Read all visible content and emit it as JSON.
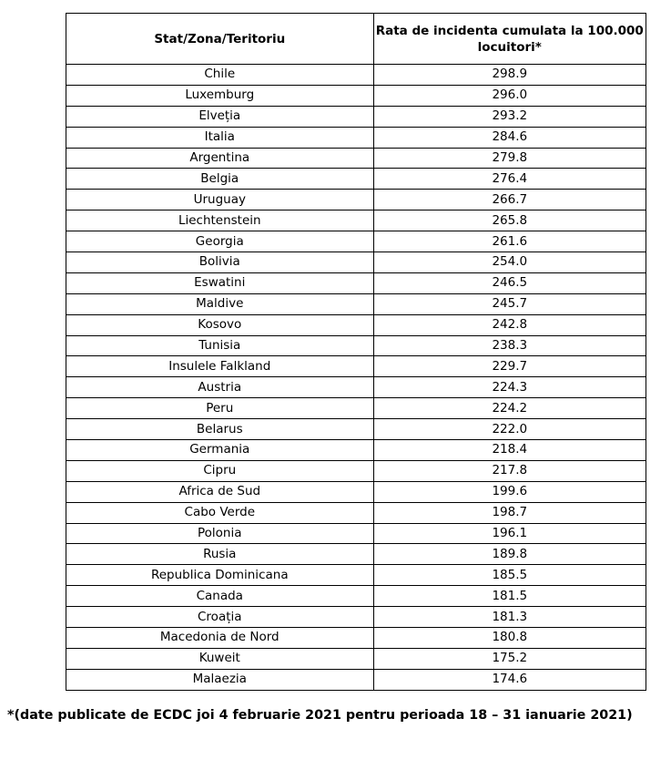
{
  "table": {
    "headers": [
      "Stat/Zona/Teritoriu",
      "Rata de incidenta cumulata la 100.000 locuitori*"
    ],
    "rows": [
      [
        "Chile",
        "298.9"
      ],
      [
        "Luxemburg",
        "296.0"
      ],
      [
        "Elveția",
        "293.2"
      ],
      [
        "Italia",
        "284.6"
      ],
      [
        "Argentina",
        "279.8"
      ],
      [
        "Belgia",
        "276.4"
      ],
      [
        "Uruguay",
        "266.7"
      ],
      [
        "Liechtenstein",
        "265.8"
      ],
      [
        "Georgia",
        "261.6"
      ],
      [
        "Bolivia",
        "254.0"
      ],
      [
        "Eswatini",
        "246.5"
      ],
      [
        "Maldive",
        "245.7"
      ],
      [
        "Kosovo",
        "242.8"
      ],
      [
        "Tunisia",
        "238.3"
      ],
      [
        "Insulele Falkland",
        "229.7"
      ],
      [
        "Austria",
        "224.3"
      ],
      [
        "Peru",
        "224.2"
      ],
      [
        "Belarus",
        "222.0"
      ],
      [
        "Germania",
        "218.4"
      ],
      [
        "Cipru",
        "217.8"
      ],
      [
        "Africa de Sud",
        "199.6"
      ],
      [
        "Cabo Verde",
        "198.7"
      ],
      [
        "Polonia",
        "196.1"
      ],
      [
        "Rusia",
        "189.8"
      ],
      [
        "Republica Dominicana",
        "185.5"
      ],
      [
        "Canada",
        "181.5"
      ],
      [
        "Croația",
        "181.3"
      ],
      [
        "Macedonia de Nord",
        "180.8"
      ],
      [
        "Kuweit",
        "175.2"
      ],
      [
        "Malaezia",
        "174.6"
      ]
    ]
  },
  "footnote": "*(date publicate de ECDC joi 4 februarie 2021 pentru perioada 18 – 31 ianuarie 2021)"
}
